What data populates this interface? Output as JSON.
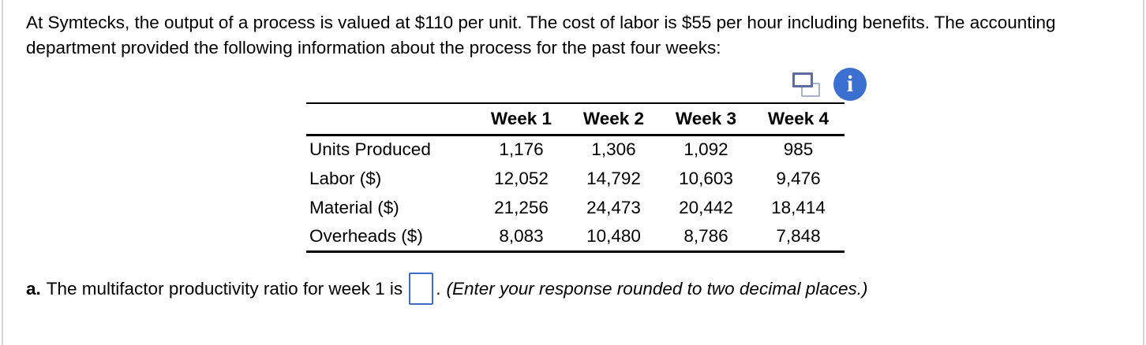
{
  "panel": {
    "intro": "At Symtecks, the output of a process is valued at $110 per unit. The cost of labor is $55 per hour including benefits. The accounting department provided the following information about the process for the past four weeks:"
  },
  "icons": {
    "info_glyph": "i"
  },
  "table": {
    "col_headers": [
      "Week 1",
      "Week 2",
      "Week 3",
      "Week 4"
    ],
    "rows": [
      {
        "label": "Units Produced",
        "values": [
          "1,176",
          "1,306",
          "1,092",
          "985"
        ]
      },
      {
        "label": "Labor ($)",
        "values": [
          "12,052",
          "14,792",
          "10,603",
          "9,476"
        ]
      },
      {
        "label": "Material ($)",
        "values": [
          "21,256",
          "24,473",
          "20,442",
          "18,414"
        ]
      },
      {
        "label": "Overheads ($)",
        "values": [
          "8,083",
          "10,480",
          "8,786",
          "7,848"
        ]
      }
    ]
  },
  "question": {
    "part_label": "a.",
    "prompt": "The multifactor productivity ratio for week 1 is",
    "answer_value": "",
    "suffix": ".",
    "instruction": "(Enter your response rounded to two decimal places.)"
  },
  "colors": {
    "info_icon_bg": "#3B6FD0",
    "copy_icon_front": "#5D6B9E",
    "copy_icon_back": "#A9B3CF",
    "answer_box_border": "#3F6CC8",
    "panel_border": "#D3D3D3",
    "text": "#000000"
  }
}
